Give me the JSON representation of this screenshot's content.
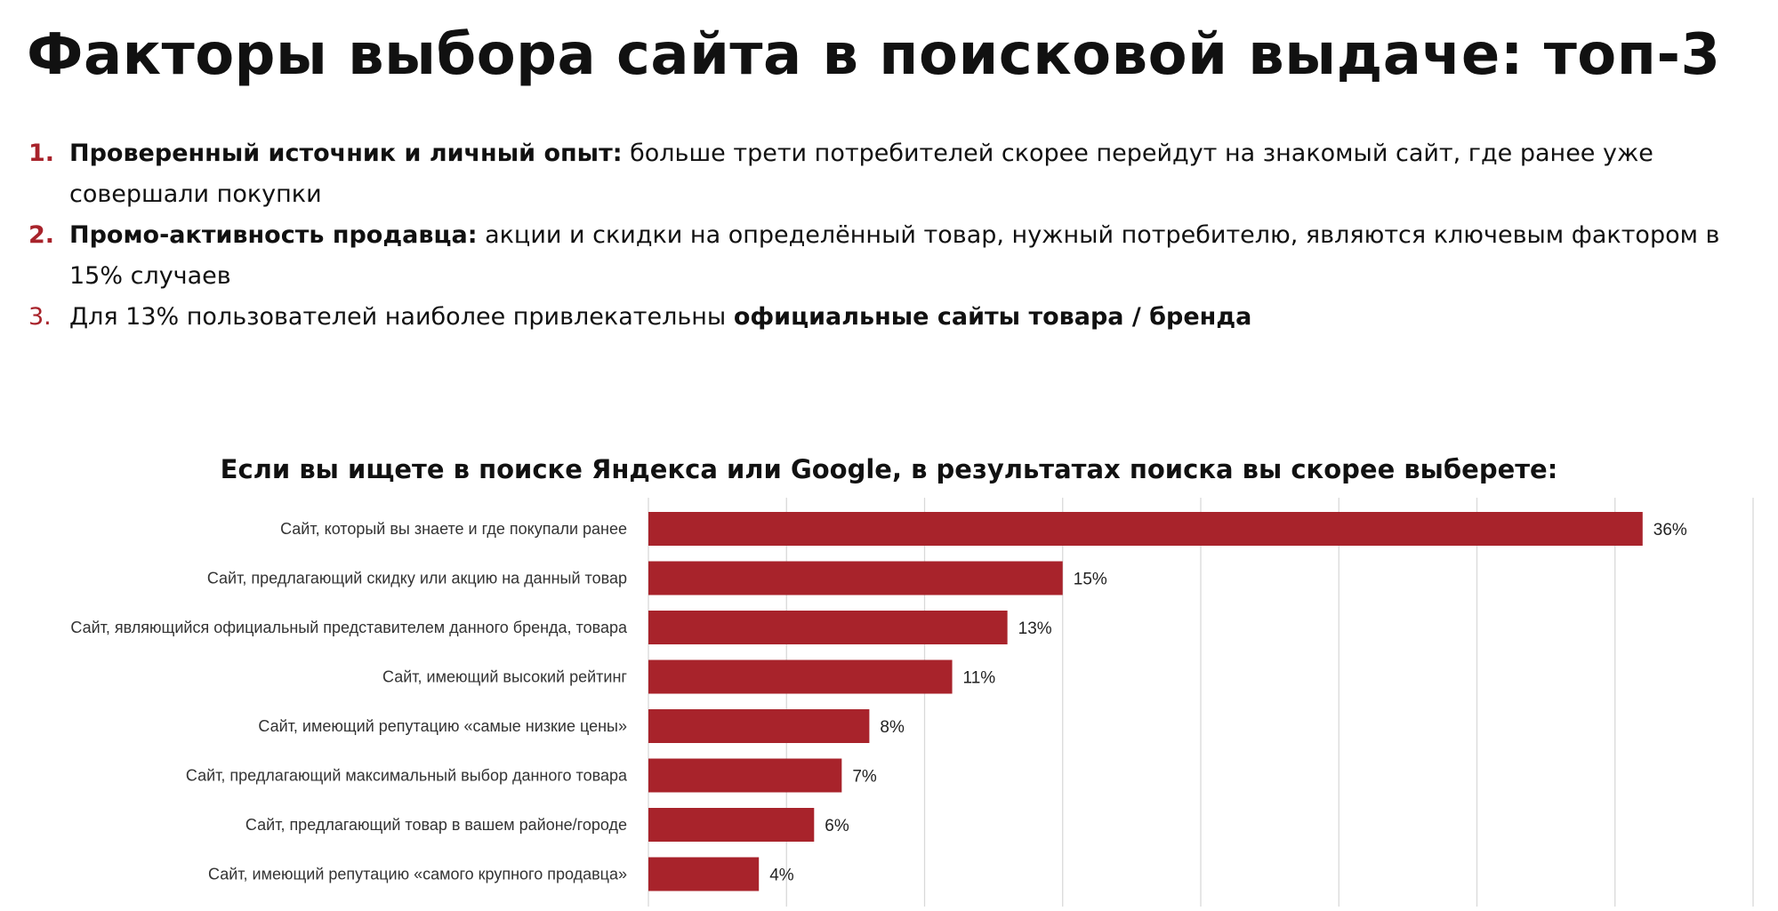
{
  "page": {
    "title": "Факторы выбора сайта в поисковой выдаче: топ-3",
    "points": [
      {
        "num": "1.",
        "bold": "Проверенный источник и личный опыт:",
        "text": " больше трети потребителей скорее перейдут на знакомый сайт, где ранее уже совершали покупки"
      },
      {
        "num": "2.",
        "bold": "Промо-активность продавца:",
        "text": " акции и скидки на определённый товар, нужный потребителю, являются ключевым фактором в 15% случаев"
      },
      {
        "num": "3.",
        "text": "Для 13% пользователей наиболее привлекательны ",
        "bold": "официальные сайты товара / бренда"
      }
    ]
  },
  "colors": {
    "accent": "#a8232b",
    "bar": "#a8232b",
    "grid": "#d9d9d9"
  },
  "chart_data": {
    "type": "bar",
    "orientation": "horizontal",
    "title": "Если вы ищете в поиске Яндекса или Google, в результатах поиска вы скорее выберете:",
    "categories": [
      "Сайт, который вы знаете и где покупали ранее",
      "Сайт, предлагающий скидку или акцию на данный товар",
      "Сайт, являющийся официальный представителем данного бренда, товара",
      "Сайт, имеющий высокий рейтинг",
      "Сайт, имеющий репутацию «самые низкие цены»",
      "Сайт, предлагающий максимальный выбор данного товара",
      "Сайт, предлагающий товар в вашем районе/городе",
      "Сайт, имеющий репутацию «самого крупного продавца»"
    ],
    "values": [
      36,
      15,
      13,
      11,
      8,
      7,
      6,
      4
    ],
    "value_labels": [
      "36%",
      "15%",
      "13%",
      "11%",
      "8%",
      "7%",
      "6%",
      "4%"
    ],
    "xlim": [
      0,
      40
    ],
    "grid": true,
    "legend": "none"
  }
}
